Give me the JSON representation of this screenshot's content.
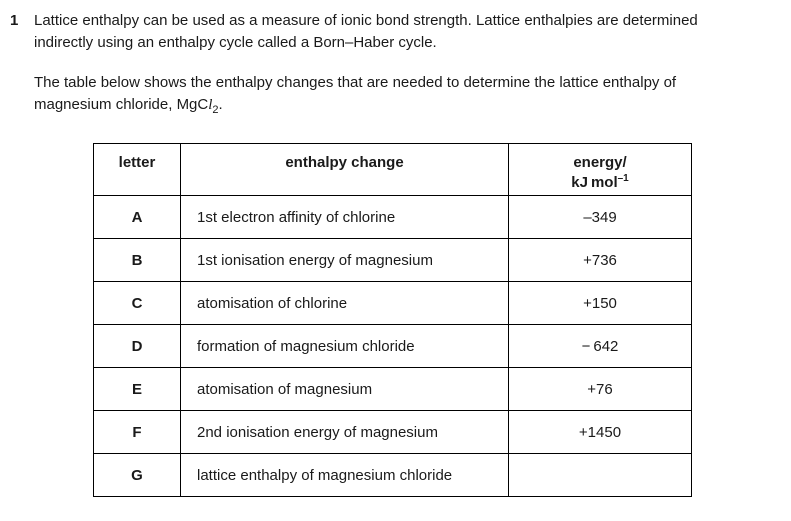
{
  "colors": {
    "background": "#ffffff",
    "text": "#1a1a1a",
    "table_border": "#000000"
  },
  "question": {
    "number": "1",
    "intro": {
      "line1": "Lattice enthalpy can be used as a measure of ionic bond strength. Lattice enthalpies are determined",
      "line2": "indirectly using an enthalpy cycle called a Born–Haber cycle."
    },
    "table_intro": {
      "line1": "The table below shows the enthalpy changes that are needed to determine the lattice enthalpy of",
      "line2_prefix": "magnesium chloride, MgC",
      "formula_italic_l": "l",
      "formula_subscript": "2",
      "line2_suffix": "."
    }
  },
  "table": {
    "headers": {
      "letter": "letter",
      "enthalpy_change": "enthalpy change",
      "energy_line1": "energy/",
      "energy_unit_main": "kJ mol",
      "energy_unit_sup": "–1"
    },
    "rows": [
      {
        "letter": "A",
        "enthalpy_change": "1st electron affinity of chlorine",
        "energy": "–349"
      },
      {
        "letter": "B",
        "enthalpy_change": "1st ionisation energy of magnesium",
        "energy": "+736"
      },
      {
        "letter": "C",
        "enthalpy_change": "atomisation of chlorine",
        "energy": "+150"
      },
      {
        "letter": "D",
        "enthalpy_change": "formation of magnesium chloride",
        "energy": "− 642"
      },
      {
        "letter": "E",
        "enthalpy_change": "atomisation of magnesium",
        "energy": "+76"
      },
      {
        "letter": "F",
        "enthalpy_change": "2nd ionisation energy of magnesium",
        "energy": "+1450"
      },
      {
        "letter": "G",
        "enthalpy_change": "lattice enthalpy of magnesium chloride",
        "energy": ""
      }
    ]
  }
}
